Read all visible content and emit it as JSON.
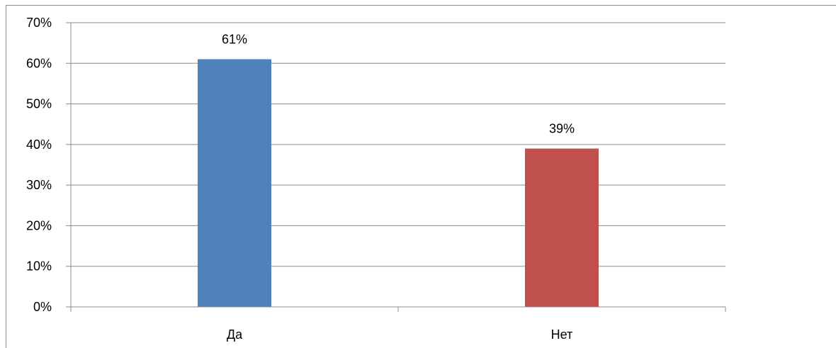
{
  "chart_data": {
    "type": "bar",
    "categories": [
      "Да",
      "Нет"
    ],
    "values": [
      61,
      39
    ],
    "value_labels": [
      "61%",
      "39%"
    ],
    "colors": [
      "#4F81BD",
      "#C0504D"
    ],
    "ylim": [
      0,
      70
    ],
    "yticks": [
      0,
      10,
      20,
      30,
      40,
      50,
      60,
      70
    ],
    "ytick_labels": [
      "0%",
      "10%",
      "20%",
      "30%",
      "40%",
      "50%",
      "60%",
      "70%"
    ],
    "grid": true,
    "legend": "none",
    "title": "",
    "xlabel": "",
    "ylabel": ""
  }
}
